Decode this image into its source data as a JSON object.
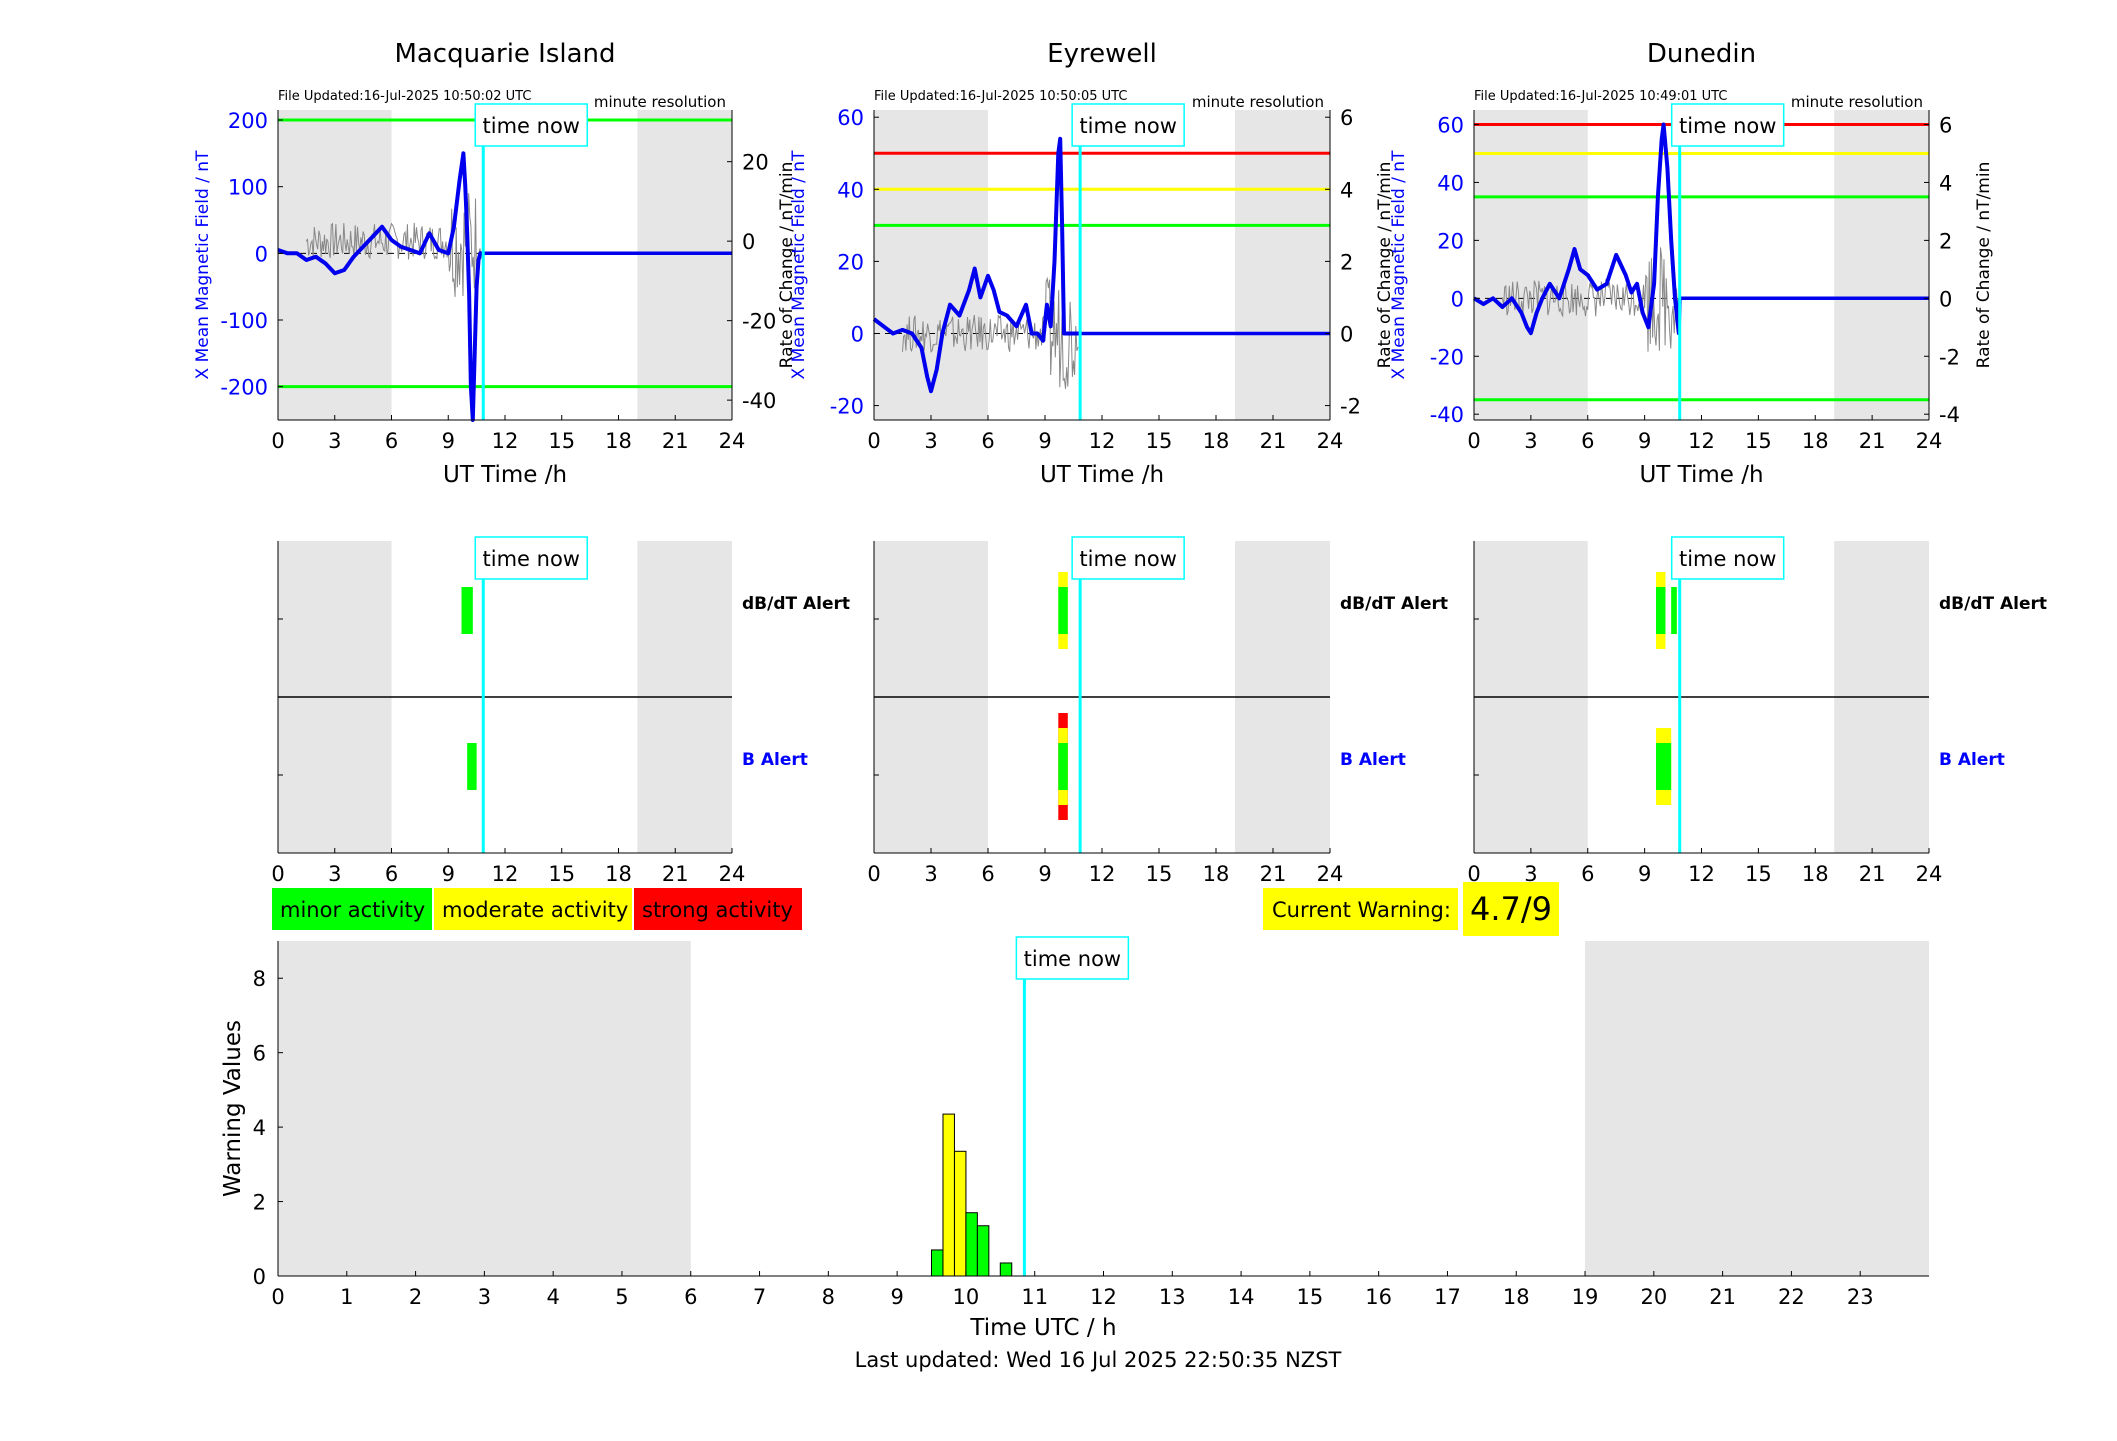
{
  "footer": {
    "last_updated": "Last updated: Wed 16 Jul 2025 22:50:35 NZST"
  },
  "colors": {
    "minor": "#00ff00",
    "moderate": "#ffff00",
    "strong": "#ff0000",
    "time_now": "#00ffff",
    "night_shade": "#e6e6e6",
    "x_field": "#0000ee"
  },
  "time_now_label": "time now",
  "time_now_h": 10.85,
  "night_shading_h": [
    [
      0,
      6
    ],
    [
      19,
      24
    ]
  ],
  "chart_data": [
    {
      "type": "line",
      "panel": "station",
      "title": "Macquarie Island",
      "file_updated": "File Updated:16-Jul-2025 10:50:02 UTC",
      "resolution": "minute resolution",
      "xlabel": "UT Time /h",
      "ylabel_left": "X Mean Magnetic Field / nT",
      "ylabel_right": "Rate of Change / nT/min",
      "xlim": [
        0,
        24
      ],
      "xticks": [
        0,
        3,
        6,
        9,
        12,
        15,
        18,
        21,
        24
      ],
      "ylim_left": [
        -250,
        215
      ],
      "yticks_left": [
        200,
        100,
        0,
        -100,
        -200
      ],
      "ylim_right": [
        -45,
        33
      ],
      "yticks_right": [
        20,
        0,
        -20,
        -40
      ],
      "threshold_lines": [
        {
          "y": 200,
          "color": "#00ff00"
        },
        {
          "y": -200,
          "color": "#00ff00"
        }
      ],
      "series": [
        {
          "values_x": [
            0,
            0.5,
            1,
            1.5,
            2,
            2.5,
            3,
            3.5,
            4,
            4.5,
            5,
            5.5,
            6,
            6.5,
            7,
            7.5,
            8,
            8.5,
            9,
            9.3,
            9.6,
            9.8,
            9.9,
            10.0,
            10.1,
            10.2,
            10.3,
            10.4,
            10.5,
            10.6,
            10.7,
            10.85
          ],
          "values_y": [
            5,
            0,
            0,
            -10,
            -5,
            -15,
            -30,
            -25,
            -5,
            10,
            25,
            40,
            20,
            10,
            5,
            0,
            30,
            5,
            0,
            40,
            110,
            150,
            100,
            30,
            -60,
            -200,
            -250,
            -150,
            -50,
            -10,
            0,
            0
          ]
        },
        {
          "values_x": [
            10.85,
            24
          ],
          "values_y": [
            0,
            0
          ]
        }
      ]
    },
    {
      "type": "line",
      "panel": "station",
      "title": "Eyrewell",
      "file_updated": "File Updated:16-Jul-2025 10:50:05 UTC",
      "resolution": "minute resolution",
      "xlabel": "UT Time /h",
      "ylabel_left": "X Mean Magnetic Field / nT",
      "ylabel_right": "Rate of Change / nT/min",
      "xlim": [
        0,
        24
      ],
      "xticks": [
        0,
        3,
        6,
        9,
        12,
        15,
        18,
        21,
        24
      ],
      "ylim_left": [
        -24,
        62
      ],
      "yticks_left": [
        60,
        40,
        20,
        0,
        -20
      ],
      "ylim_right": [
        -2.4,
        6.2
      ],
      "yticks_right": [
        6,
        4,
        2,
        0,
        -2
      ],
      "threshold_lines": [
        {
          "y": 50,
          "color": "#ff0000"
        },
        {
          "y": 40,
          "color": "#ffff00"
        },
        {
          "y": 30,
          "color": "#00ff00"
        }
      ],
      "series": [
        {
          "values_x": [
            0,
            0.5,
            1,
            1.5,
            2,
            2.5,
            2.8,
            3.0,
            3.3,
            3.6,
            4,
            4.5,
            5,
            5.3,
            5.6,
            6,
            6.3,
            6.6,
            7,
            7.5,
            8,
            8.3,
            8.6,
            8.9,
            9.1,
            9.3,
            9.5,
            9.6,
            9.7,
            9.8,
            9.9,
            10.0,
            10.85
          ],
          "values_y": [
            4,
            2,
            0,
            1,
            0,
            -4,
            -12,
            -16,
            -10,
            0,
            8,
            5,
            12,
            18,
            10,
            16,
            12,
            6,
            5,
            2,
            8,
            0,
            0,
            -2,
            8,
            2,
            20,
            35,
            50,
            54,
            30,
            0,
            0
          ]
        },
        {
          "values_x": [
            10.85,
            24
          ],
          "values_y": [
            0,
            0
          ]
        }
      ]
    },
    {
      "type": "line",
      "panel": "station",
      "title": "Dunedin",
      "file_updated": "File Updated:16-Jul-2025 10:49:01 UTC",
      "resolution": "minute resolution",
      "xlabel": "UT Time /h",
      "ylabel_left": "X Mean Magnetic Field / nT",
      "ylabel_right": "Rate of Change / nT/min",
      "xlim": [
        0,
        24
      ],
      "xticks": [
        0,
        3,
        6,
        9,
        12,
        15,
        18,
        21,
        24
      ],
      "ylim_left": [
        -42,
        65
      ],
      "yticks_left": [
        60,
        40,
        20,
        0,
        -20,
        -40
      ],
      "ylim_right": [
        -4.2,
        6.5
      ],
      "yticks_right": [
        6,
        4,
        2,
        0,
        -2,
        -4
      ],
      "threshold_lines": [
        {
          "y": 60,
          "color": "#ff0000"
        },
        {
          "y": 50,
          "color": "#ffff00"
        },
        {
          "y": 35,
          "color": "#00ff00"
        },
        {
          "y": -35,
          "color": "#00ff00"
        }
      ],
      "series": [
        {
          "values_x": [
            0,
            0.5,
            1,
            1.5,
            2,
            2.5,
            2.8,
            3.0,
            3.3,
            3.6,
            4,
            4.5,
            5,
            5.3,
            5.6,
            6,
            6.5,
            7,
            7.5,
            8,
            8.3,
            8.6,
            8.9,
            9.2,
            9.5,
            9.7,
            9.9,
            10.0,
            10.2,
            10.4,
            10.6,
            10.8,
            10.85
          ],
          "values_y": [
            0,
            -2,
            0,
            -3,
            0,
            -5,
            -10,
            -12,
            -5,
            0,
            5,
            0,
            10,
            17,
            10,
            8,
            3,
            5,
            15,
            8,
            2,
            5,
            -5,
            -10,
            5,
            35,
            55,
            60,
            45,
            20,
            0,
            -12,
            0
          ]
        },
        {
          "values_x": [
            10.85,
            24
          ],
          "values_y": [
            0,
            0
          ]
        }
      ]
    },
    {
      "type": "bar",
      "panel": "alerts",
      "station": "Macquarie Island",
      "xlim": [
        0,
        24
      ],
      "xticks": [
        0,
        3,
        6,
        9,
        12,
        15,
        18,
        21,
        24
      ],
      "rows": [
        {
          "label": "dB/dT Alert",
          "label_color": "#000000",
          "blocks": [
            {
              "x0": 9.7,
              "x1": 10.3,
              "height": 1,
              "color": "#00ff00"
            }
          ]
        },
        {
          "label": "B Alert",
          "label_color": "#0000ff",
          "blocks": [
            {
              "x0": 10.0,
              "x1": 10.5,
              "height": 1,
              "color": "#00ff00"
            }
          ]
        }
      ]
    },
    {
      "type": "bar",
      "panel": "alerts",
      "station": "Eyrewell",
      "xlim": [
        0,
        24
      ],
      "xticks": [
        0,
        3,
        6,
        9,
        12,
        15,
        18,
        21,
        24
      ],
      "rows": [
        {
          "label": "dB/dT Alert",
          "label_color": "#000000",
          "blocks": [
            {
              "x0": 9.7,
              "x1": 10.2,
              "height": 2,
              "color": "#ffff00"
            },
            {
              "x0": 9.7,
              "x1": 10.2,
              "height": 1,
              "color": "#00ff00"
            }
          ]
        },
        {
          "label": "B Alert",
          "label_color": "#0000ff",
          "blocks": [
            {
              "x0": 9.7,
              "x1": 10.2,
              "height": 3,
              "color": "#ff0000"
            },
            {
              "x0": 9.7,
              "x1": 10.2,
              "height": 2,
              "color": "#ffff00"
            },
            {
              "x0": 9.7,
              "x1": 10.2,
              "height": 1,
              "color": "#00ff00"
            }
          ]
        }
      ]
    },
    {
      "type": "bar",
      "panel": "alerts",
      "station": "Dunedin",
      "xlim": [
        0,
        24
      ],
      "xticks": [
        0,
        3,
        6,
        9,
        12,
        15,
        18,
        21,
        24
      ],
      "rows": [
        {
          "label": "dB/dT Alert",
          "label_color": "#000000",
          "blocks": [
            {
              "x0": 9.6,
              "x1": 10.1,
              "height": 2,
              "color": "#ffff00"
            },
            {
              "x0": 9.6,
              "x1": 10.1,
              "height": 1,
              "color": "#00ff00"
            },
            {
              "x0": 10.4,
              "x1": 10.7,
              "height": 1,
              "color": "#00ff00"
            }
          ]
        },
        {
          "label": "B Alert",
          "label_color": "#0000ff",
          "blocks": [
            {
              "x0": 9.6,
              "x1": 10.4,
              "height": 2,
              "color": "#ffff00"
            },
            {
              "x0": 9.6,
              "x1": 10.4,
              "height": 1,
              "color": "#00ff00"
            }
          ]
        }
      ]
    },
    {
      "type": "bar",
      "panel": "warning",
      "xlabel": "Time UTC / h",
      "ylabel": "Warning Values",
      "xlim": [
        0,
        24
      ],
      "xticks": [
        0,
        1,
        2,
        3,
        4,
        5,
        6,
        7,
        8,
        9,
        10,
        11,
        12,
        13,
        14,
        15,
        16,
        17,
        18,
        19,
        20,
        21,
        22,
        23
      ],
      "ylim": [
        0,
        9
      ],
      "yticks": [
        0,
        2,
        4,
        6,
        8
      ],
      "bar_width_h": 0.1667,
      "bars": [
        {
          "x": 9.583,
          "value": 0.7,
          "color": "#00ff00"
        },
        {
          "x": 9.75,
          "value": 4.35,
          "color": "#ffff00"
        },
        {
          "x": 9.917,
          "value": 3.35,
          "color": "#ffff00"
        },
        {
          "x": 10.083,
          "value": 1.7,
          "color": "#00ff00"
        },
        {
          "x": 10.25,
          "value": 1.35,
          "color": "#00ff00"
        },
        {
          "x": 10.583,
          "value": 0.35,
          "color": "#00ff00"
        }
      ]
    }
  ],
  "legend": {
    "items": [
      {
        "label": "minor activity",
        "color": "#00ff00"
      },
      {
        "label": "moderate activity",
        "color": "#ffff00"
      },
      {
        "label": "strong activity",
        "color": "#ff0000"
      }
    ]
  },
  "current_warning": {
    "label": "Current Warning:",
    "value": "4.7/9"
  }
}
